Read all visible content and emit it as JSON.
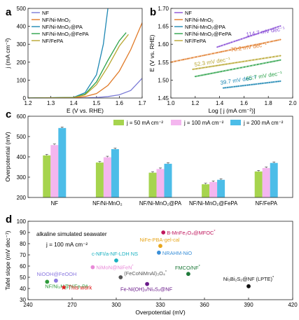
{
  "chart_data": [
    {
      "panel": "a",
      "type": "line",
      "xlabel": "E (V vs. RHE)",
      "ylabel": "j (mA cm⁻²)",
      "xlim": [
        1.2,
        1.7
      ],
      "ylim": [
        0,
        500
      ],
      "xticks": [
        "1.2",
        "1.3",
        "1.4",
        "1.5",
        "1.6",
        "1.7"
      ],
      "yticks": [
        "0",
        "100",
        "200",
        "300",
        "400",
        "500"
      ],
      "legend": "top-left",
      "series": [
        {
          "name": "NF",
          "color": "#7b7bd6",
          "x": [
            1.2,
            1.45,
            1.5,
            1.55,
            1.6,
            1.65,
            1.7
          ],
          "y": [
            0,
            1,
            3,
            8,
            18,
            42,
            110
          ]
        },
        {
          "name": "NF/Ni-MnO₂",
          "color": "#e07a28",
          "x": [
            1.2,
            1.4,
            1.45,
            1.5,
            1.55,
            1.6,
            1.65,
            1.7
          ],
          "y": [
            0,
            2,
            8,
            25,
            70,
            150,
            270,
            420
          ]
        },
        {
          "name": "NF/Ni-MnO₂@PA",
          "color": "#1f88b4",
          "x": [
            1.2,
            1.4,
            1.45,
            1.5,
            1.53,
            1.55
          ],
          "y": [
            0,
            4,
            30,
            130,
            300,
            500
          ]
        },
        {
          "name": "NF/Ni-MnO₂@FePA",
          "color": "#2ca24a",
          "x": [
            1.2,
            1.4,
            1.45,
            1.5,
            1.55,
            1.6,
            1.63
          ],
          "y": [
            0,
            3,
            22,
            90,
            210,
            320,
            365
          ]
        },
        {
          "name": "NF/FePA",
          "color": "#b8a630",
          "x": [
            1.2,
            1.4,
            1.45,
            1.5,
            1.55,
            1.6,
            1.64
          ],
          "y": [
            0,
            3,
            18,
            75,
            175,
            290,
            355
          ]
        }
      ]
    },
    {
      "panel": "b",
      "type": "line",
      "xlabel": "Log [ j (mA cm⁻²)]",
      "ylabel": "E (V vs. RHE)",
      "xlim": [
        1.0,
        2.0
      ],
      "ylim": [
        1.45,
        1.7
      ],
      "xticks": [
        "1.0",
        "1.2",
        "1.4",
        "1.6",
        "1.8",
        "2.0"
      ],
      "yticks": [
        "1.45",
        "1.50",
        "1.55",
        "1.60",
        "1.65",
        "1.70"
      ],
      "legend": "top-left",
      "series": [
        {
          "name": "NF",
          "color": "#8a4fd6",
          "x": [
            1.38,
            1.9
          ],
          "y": [
            1.592,
            1.651
          ]
        },
        {
          "name": "NF/Ni-MnO₂",
          "color": "#e07a28",
          "x": [
            1.0,
            1.9
          ],
          "y": [
            1.55,
            1.613
          ]
        },
        {
          "name": "NF/Ni-MnO₂@PA",
          "color": "#1f88b4",
          "x": [
            1.43,
            1.9
          ],
          "y": [
            1.478,
            1.497
          ]
        },
        {
          "name": "NF/Ni-MnO₂@FePA",
          "color": "#2ca24a",
          "x": [
            1.2,
            1.9
          ],
          "y": [
            1.51,
            1.556
          ]
        },
        {
          "name": "NF/FePA",
          "color": "#b8a630",
          "x": [
            1.18,
            1.9
          ],
          "y": [
            1.53,
            1.568
          ]
        }
      ],
      "annotations": [
        {
          "text": "114.7 mV dec⁻¹",
          "color": "#8a4fd6"
        },
        {
          "text": "70.2 mV dec⁻¹",
          "color": "#e07a28"
        },
        {
          "text": "52.3 mV dec⁻¹",
          "color": "#b8a630"
        },
        {
          "text": "65.7 mV dec⁻¹",
          "color": "#2ca24a"
        },
        {
          "text": "39.7 mV dec⁻¹",
          "color": "#1f88b4"
        }
      ]
    },
    {
      "panel": "c",
      "type": "bar",
      "ylabel": "Overpotential (mV)",
      "ylim": [
        200,
        600
      ],
      "yticks": [
        "200",
        "300",
        "400",
        "500",
        "600"
      ],
      "categories": [
        "NF",
        "NF/Ni-MnO₂",
        "NF/Ni-MnO₂@PA",
        "NF/Ni-MnO₂@FePA",
        "NF/FePA"
      ],
      "legend": "top",
      "series": [
        {
          "name": "j = 50 mA cm⁻²",
          "color": "#a6d44e",
          "values": [
            407,
            372,
            322,
            265,
            328
          ]
        },
        {
          "name": "j = 100 mA cm⁻²",
          "color": "#f4b6ef",
          "values": [
            458,
            398,
            340,
            276,
            345
          ]
        },
        {
          "name": "j = 200 mA cm⁻²",
          "color": "#4cbde8",
          "values": [
            542,
            438,
            366,
            287,
            370
          ]
        }
      ]
    },
    {
      "panel": "d",
      "type": "scatter",
      "xlabel": "Overpotential (mV)",
      "ylabel": "Tafel slope (mV dec⁻¹)",
      "xlim": [
        240,
        420
      ],
      "ylim": [
        30,
        100
      ],
      "xticks": [
        "240",
        "270",
        "300",
        "330",
        "360",
        "390",
        "420"
      ],
      "yticks": [
        "30",
        "40",
        "50",
        "60",
        "70",
        "80",
        "90",
        "100"
      ],
      "header": "alkaline simulated seawater",
      "condition": "j = 100 mA cm⁻²",
      "points": [
        {
          "label": "B-MnFe₂O₄@MFOC",
          "mark": "*",
          "x": 332,
          "y": 90,
          "color": "#c0185e"
        },
        {
          "label": "NiFe-PBA-gel-cal",
          "mark": "",
          "x": 330,
          "y": 78,
          "color": "#e8a61c"
        },
        {
          "label": "NRAHM-NiO",
          "mark": "",
          "x": 329,
          "y": 72,
          "color": "#3a8fd8"
        },
        {
          "label": "c-NFI/a-NF-LDH NS",
          "mark": "",
          "x": 300,
          "y": 65,
          "color": "#18b0c0"
        },
        {
          "label": "NiMoN@NiFeN",
          "mark": "*",
          "x": 284,
          "y": 59,
          "color": "#e88ad8"
        },
        {
          "label": "FMCO/NF",
          "mark": "*",
          "x": 349,
          "y": 53,
          "color": "#1f7a3a"
        },
        {
          "label": "(FeCoNiMnAl)₃O₄",
          "mark": "*",
          "x": 303,
          "y": 50,
          "color": "#555555"
        },
        {
          "label": "NiOOH@FeOOH",
          "mark": "",
          "x": 259,
          "y": 47,
          "color": "#8a78e0"
        },
        {
          "label": "NF/Ni₃N@NiFe-PA",
          "mark": "",
          "x": 253,
          "y": 46,
          "color": "#2e9a3a"
        },
        {
          "label": "Fe-Ni(OH)₂/Ni₃S₂@NF",
          "mark": "",
          "x": 321,
          "y": 44,
          "color": "#6a1a8a"
        },
        {
          "label": "Ni₃Bi₂S₂@NF (LPTE)",
          "mark": "*",
          "x": 390,
          "y": 42,
          "color": "#111111"
        },
        {
          "label": "This work",
          "mark": "",
          "x": 271,
          "y": 41,
          "color": "#e02020",
          "star": true
        }
      ]
    }
  ]
}
